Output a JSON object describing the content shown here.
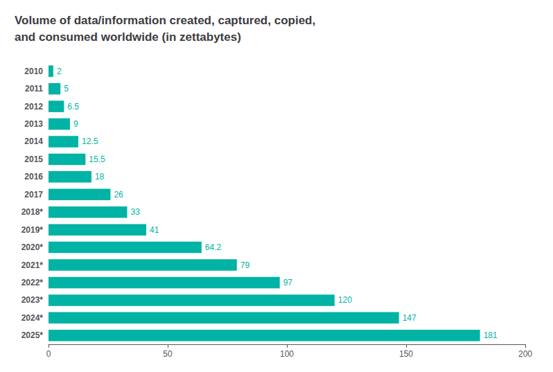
{
  "chart_data": {
    "type": "bar",
    "orientation": "horizontal",
    "title": "Volume of data/information created, captured, copied,\nand consumed worldwide (in zettabytes)",
    "categories": [
      "2010",
      "2011",
      "2012",
      "2013",
      "2014",
      "2015",
      "2016",
      "2017",
      "2018*",
      "2019*",
      "2020*",
      "2021*",
      "2022*",
      "2023*",
      "2024*",
      "2025*"
    ],
    "values": [
      2,
      5,
      6.5,
      9,
      12.5,
      15.5,
      18,
      26,
      33,
      41,
      64.2,
      79,
      97,
      120,
      147,
      181
    ],
    "color": "#00b3a4",
    "xlim": [
      0,
      200
    ],
    "xticks": [
      0,
      50,
      100,
      150,
      200
    ],
    "grid": false,
    "data_labels": true
  }
}
